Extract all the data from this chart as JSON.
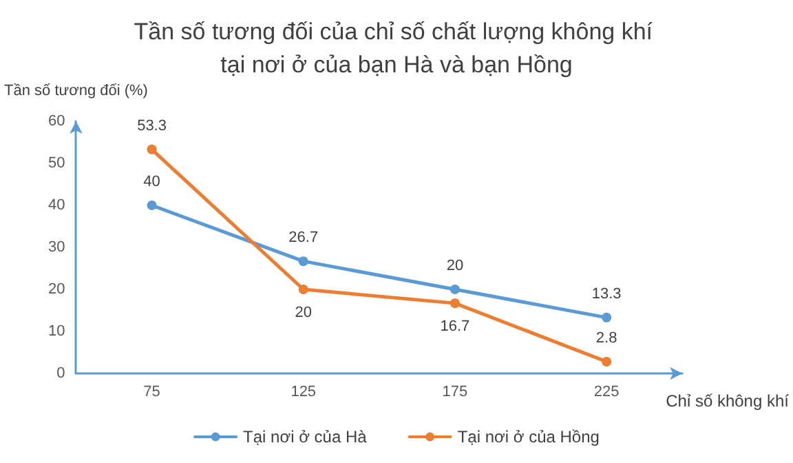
{
  "chart_data": {
    "type": "line",
    "title": "Tần số tương đối của chỉ số chất lượng không khí tại nơi ở của bạn Hà và bạn Hồng",
    "xlabel": "Chỉ số không khí",
    "ylabel": "Tần số tương đối (%)",
    "categories": [
      "75",
      "125",
      "175",
      "225"
    ],
    "series": [
      {
        "name": "Tại nơi ở của Hà",
        "color": "#5b9bd5",
        "values": [
          40,
          26.7,
          20,
          13.3
        ]
      },
      {
        "name": "Tại nơi ở của Hồng",
        "color": "#ed7d31",
        "values": [
          53.3,
          20,
          16.7,
          2.8
        ]
      }
    ],
    "ylim": [
      0,
      60
    ],
    "yticks": [
      0,
      10,
      20,
      30,
      40,
      50,
      60
    ],
    "grid": false,
    "legend": "bottom",
    "marker": "circle",
    "line_style": "solid",
    "data_labels": true
  }
}
